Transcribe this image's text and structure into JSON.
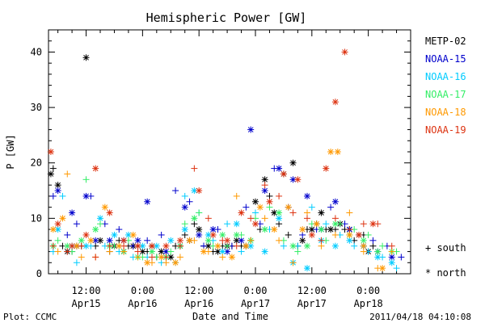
{
  "chart_data": {
    "type": "scatter",
    "title": "Hemispheric Power [GW]",
    "xlabel": "Date and Time",
    "ylabel": "P [GW]",
    "x_unit": "hours since 2011-04-15 00:00",
    "xlim": [
      4,
      81
    ],
    "ylim": [
      0,
      44
    ],
    "yticks": [
      0,
      10,
      20,
      30,
      40
    ],
    "xticks": [
      {
        "x": 12,
        "line1": "12:00",
        "line2": "Apr15"
      },
      {
        "x": 24,
        "line1": "0:00",
        "line2": "Apr16"
      },
      {
        "x": 36,
        "line1": "12:00",
        "line2": "Apr16"
      },
      {
        "x": 48,
        "line1": "0:00",
        "line2": "Apr17"
      },
      {
        "x": 60,
        "line1": "12:00",
        "line2": "Apr17"
      },
      {
        "x": 72,
        "line1": "0:00",
        "line2": "Apr18"
      }
    ],
    "markers": {
      "south": "+ south",
      "north": "* north"
    },
    "series": [
      {
        "name": "METP-02",
        "color": "#000000",
        "south": [
          [
            5,
            19
          ],
          [
            7,
            5
          ],
          [
            9,
            4
          ],
          [
            11,
            5
          ],
          [
            14,
            5
          ],
          [
            17,
            4
          ],
          [
            19,
            6
          ],
          [
            21,
            5
          ],
          [
            23,
            5
          ],
          [
            25,
            4
          ],
          [
            27,
            3
          ],
          [
            29,
            4
          ],
          [
            31,
            5
          ],
          [
            33,
            7
          ],
          [
            35,
            9
          ],
          [
            37,
            5
          ],
          [
            39,
            4
          ],
          [
            41,
            5
          ],
          [
            43,
            5
          ],
          [
            45,
            5
          ],
          [
            47,
            6
          ],
          [
            49,
            8
          ],
          [
            51,
            14
          ],
          [
            53,
            9
          ],
          [
            55,
            7
          ],
          [
            57,
            5
          ],
          [
            59,
            8
          ],
          [
            61,
            9
          ],
          [
            63,
            8
          ],
          [
            65,
            8
          ],
          [
            67,
            8
          ],
          [
            69,
            6
          ],
          [
            71,
            7
          ],
          [
            73,
            5
          ]
        ],
        "north": [
          [
            4.5,
            18
          ],
          [
            6,
            16
          ],
          [
            8,
            4
          ],
          [
            10,
            5
          ],
          [
            12,
            39
          ],
          [
            15,
            6
          ],
          [
            18,
            5
          ],
          [
            20,
            4
          ],
          [
            22,
            5
          ],
          [
            24,
            4
          ],
          [
            26,
            5
          ],
          [
            28,
            4
          ],
          [
            30,
            3
          ],
          [
            32,
            5
          ],
          [
            34,
            6
          ],
          [
            36,
            8
          ],
          [
            38,
            5
          ],
          [
            40,
            4
          ],
          [
            42,
            5
          ],
          [
            44,
            6
          ],
          [
            46,
            5
          ],
          [
            48,
            13
          ],
          [
            50,
            17
          ],
          [
            52,
            11
          ],
          [
            54,
            18
          ],
          [
            56,
            20
          ],
          [
            58,
            6
          ],
          [
            60,
            8
          ],
          [
            62,
            11
          ],
          [
            64,
            8
          ],
          [
            66,
            9
          ],
          [
            68,
            8
          ],
          [
            70,
            7
          ],
          [
            72,
            4
          ]
        ]
      },
      {
        "name": "NOAA-15",
        "color": "#0000cc",
        "south": [
          [
            5,
            14
          ],
          [
            8,
            7
          ],
          [
            10,
            9
          ],
          [
            13,
            14
          ],
          [
            16,
            9
          ],
          [
            19,
            8
          ],
          [
            22,
            5
          ],
          [
            25,
            6
          ],
          [
            28,
            7
          ],
          [
            31,
            15
          ],
          [
            34,
            13
          ],
          [
            37,
            5
          ],
          [
            40,
            8
          ],
          [
            43,
            5
          ],
          [
            46,
            12
          ],
          [
            49,
            9
          ],
          [
            52,
            19
          ],
          [
            55,
            12
          ],
          [
            58,
            7
          ],
          [
            61,
            8
          ],
          [
            64,
            12
          ],
          [
            67,
            9
          ],
          [
            70,
            7
          ],
          [
            73,
            6
          ],
          [
            76,
            5
          ],
          [
            79,
            3
          ]
        ],
        "north": [
          [
            6,
            15
          ],
          [
            9,
            11
          ],
          [
            12,
            14
          ],
          [
            14,
            6
          ],
          [
            17,
            6
          ],
          [
            20,
            6
          ],
          [
            23,
            6
          ],
          [
            25,
            13
          ],
          [
            29,
            4
          ],
          [
            33,
            12
          ],
          [
            36,
            7
          ],
          [
            39,
            8
          ],
          [
            42,
            4
          ],
          [
            45,
            6
          ],
          [
            47,
            26
          ],
          [
            50,
            15
          ],
          [
            53,
            19
          ],
          [
            56,
            17
          ],
          [
            59,
            14
          ],
          [
            62,
            8
          ],
          [
            65,
            13
          ],
          [
            68,
            8
          ],
          [
            71,
            5
          ],
          [
            74,
            4
          ],
          [
            77,
            3
          ]
        ]
      },
      {
        "name": "NOAA-16",
        "color": "#00ccff",
        "south": [
          [
            5,
            4
          ],
          [
            7,
            14
          ],
          [
            10,
            2
          ],
          [
            13,
            5
          ],
          [
            16,
            5
          ],
          [
            19,
            4
          ],
          [
            22,
            3
          ],
          [
            25,
            3
          ],
          [
            28,
            2
          ],
          [
            31,
            2
          ],
          [
            33,
            14
          ],
          [
            36,
            11
          ],
          [
            39,
            6
          ],
          [
            42,
            9
          ],
          [
            45,
            4
          ],
          [
            48,
            11
          ],
          [
            51,
            8
          ],
          [
            54,
            5
          ],
          [
            57,
            5
          ],
          [
            60,
            12
          ],
          [
            63,
            9
          ],
          [
            66,
            7
          ],
          [
            69,
            5
          ],
          [
            72,
            4
          ],
          [
            75,
            3
          ],
          [
            78,
            1
          ]
        ],
        "north": [
          [
            6,
            8
          ],
          [
            9,
            5
          ],
          [
            12,
            5
          ],
          [
            15,
            10
          ],
          [
            18,
            7
          ],
          [
            21,
            7
          ],
          [
            24,
            5
          ],
          [
            27,
            5
          ],
          [
            30,
            6
          ],
          [
            33,
            8
          ],
          [
            35,
            15
          ],
          [
            38,
            7
          ],
          [
            41,
            4
          ],
          [
            44,
            9
          ],
          [
            47,
            5
          ],
          [
            50,
            4
          ],
          [
            53,
            10
          ],
          [
            56,
            2
          ],
          [
            59,
            1
          ],
          [
            62,
            6
          ],
          [
            65,
            5
          ],
          [
            68,
            6
          ],
          [
            71,
            5
          ],
          [
            74,
            3
          ],
          [
            77,
            2
          ]
        ]
      },
      {
        "name": "NOAA-17",
        "color": "#33ee66",
        "south": [
          [
            6,
            6
          ],
          [
            9,
            4
          ],
          [
            12,
            17
          ],
          [
            15,
            9
          ],
          [
            18,
            5
          ],
          [
            21,
            6
          ],
          [
            24,
            3
          ],
          [
            27,
            3
          ],
          [
            30,
            4
          ],
          [
            33,
            9
          ],
          [
            36,
            11
          ],
          [
            39,
            5
          ],
          [
            42,
            5
          ],
          [
            45,
            7
          ],
          [
            48,
            10
          ],
          [
            51,
            12
          ],
          [
            54,
            6
          ],
          [
            57,
            4
          ],
          [
            60,
            9
          ],
          [
            63,
            6
          ],
          [
            66,
            9
          ],
          [
            69,
            8
          ],
          [
            72,
            7
          ],
          [
            75,
            5
          ],
          [
            78,
            4
          ]
        ],
        "north": [
          [
            5,
            5
          ],
          [
            8,
            5
          ],
          [
            11,
            6
          ],
          [
            14,
            8
          ],
          [
            17,
            5
          ],
          [
            20,
            4
          ],
          [
            23,
            3
          ],
          [
            26,
            4
          ],
          [
            29,
            3
          ],
          [
            32,
            5
          ],
          [
            35,
            10
          ],
          [
            38,
            6
          ],
          [
            41,
            7
          ],
          [
            44,
            7
          ],
          [
            47,
            6
          ],
          [
            50,
            8
          ],
          [
            53,
            11
          ],
          [
            56,
            5
          ],
          [
            59,
            5
          ],
          [
            62,
            8
          ],
          [
            65,
            9
          ],
          [
            68,
            7
          ],
          [
            71,
            6
          ],
          [
            74,
            4
          ],
          [
            77,
            4
          ]
        ]
      },
      {
        "name": "NOAA-18",
        "color": "#ff9900",
        "south": [
          [
            6,
            4
          ],
          [
            8,
            18
          ],
          [
            11,
            3
          ],
          [
            14,
            3
          ],
          [
            17,
            4
          ],
          [
            20,
            4
          ],
          [
            23,
            3
          ],
          [
            26,
            2
          ],
          [
            29,
            2
          ],
          [
            32,
            3
          ],
          [
            35,
            6
          ],
          [
            38,
            4
          ],
          [
            41,
            3
          ],
          [
            44,
            14
          ],
          [
            47,
            6
          ],
          [
            50,
            10
          ],
          [
            53,
            6
          ],
          [
            56,
            2
          ],
          [
            59,
            11
          ],
          [
            62,
            5
          ],
          [
            65,
            7
          ],
          [
            68,
            11
          ],
          [
            71,
            4
          ],
          [
            74,
            1
          ],
          [
            77,
            4
          ]
        ],
        "north": [
          [
            5,
            8
          ],
          [
            7,
            10
          ],
          [
            10,
            5
          ],
          [
            13,
            6
          ],
          [
            16,
            12
          ],
          [
            19,
            5
          ],
          [
            22,
            7
          ],
          [
            25,
            2
          ],
          [
            28,
            3
          ],
          [
            31,
            2
          ],
          [
            34,
            6
          ],
          [
            37,
            4
          ],
          [
            40,
            5
          ],
          [
            43,
            3
          ],
          [
            46,
            5
          ],
          [
            49,
            12
          ],
          [
            52,
            8
          ],
          [
            55,
            12
          ],
          [
            58,
            8
          ],
          [
            61,
            9
          ],
          [
            64,
            22
          ],
          [
            65.5,
            22
          ],
          [
            68,
            7
          ],
          [
            71,
            5
          ],
          [
            75,
            1
          ]
        ]
      },
      {
        "name": "NOAA-19",
        "color": "#dd3311",
        "south": [
          [
            5,
            5
          ],
          [
            8,
            4
          ],
          [
            11,
            5
          ],
          [
            14,
            3
          ],
          [
            17,
            5
          ],
          [
            20,
            5
          ],
          [
            23,
            4
          ],
          [
            26,
            3
          ],
          [
            29,
            3
          ],
          [
            32,
            5
          ],
          [
            35,
            19
          ],
          [
            38,
            10
          ],
          [
            41,
            6
          ],
          [
            44,
            5
          ],
          [
            47,
            10
          ],
          [
            50,
            16
          ],
          [
            53,
            14
          ],
          [
            56,
            11
          ],
          [
            59,
            10
          ],
          [
            62,
            6
          ],
          [
            65,
            10
          ],
          [
            68,
            8
          ],
          [
            71,
            9
          ],
          [
            74,
            9
          ],
          [
            77,
            5
          ]
        ],
        "north": [
          [
            4.5,
            22
          ],
          [
            6,
            9
          ],
          [
            9,
            5
          ],
          [
            12,
            7
          ],
          [
            14,
            19
          ],
          [
            17,
            11
          ],
          [
            20,
            6
          ],
          [
            23,
            5
          ],
          [
            26,
            5
          ],
          [
            29,
            5
          ],
          [
            32,
            6
          ],
          [
            36,
            15
          ],
          [
            39,
            7
          ],
          [
            42,
            6
          ],
          [
            45,
            11
          ],
          [
            48,
            9
          ],
          [
            51,
            13
          ],
          [
            54,
            18
          ],
          [
            57,
            17
          ],
          [
            60,
            7
          ],
          [
            63,
            19
          ],
          [
            65,
            31
          ],
          [
            67,
            40
          ],
          [
            70,
            7
          ],
          [
            73,
            9
          ]
        ]
      }
    ]
  },
  "footer": {
    "plot_credit": "Plot: CCMC",
    "timestamp": "2011/04/18 04:10:08"
  }
}
